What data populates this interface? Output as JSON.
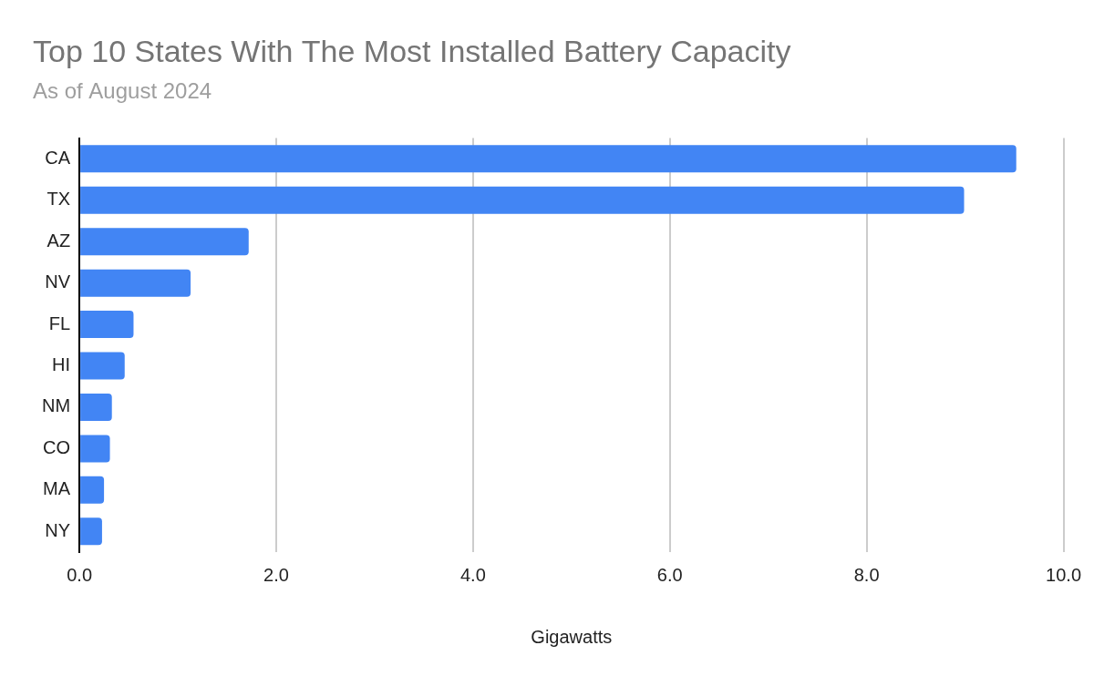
{
  "chart_data": {
    "type": "bar",
    "title": "Top 10 States With The Most Installed Battery Capacity",
    "subtitle": "As of August 2024",
    "x_label": "Gigawatts",
    "orientation": "horizontal",
    "categories": [
      "CA",
      "TX",
      "AZ",
      "NV",
      "FL",
      "HI",
      "NM",
      "CO",
      "MA",
      "NY"
    ],
    "values": [
      9.52,
      8.99,
      1.72,
      1.13,
      0.55,
      0.46,
      0.33,
      0.31,
      0.25,
      0.23
    ],
    "color": "#4285f4",
    "xlim": [
      0,
      10
    ],
    "xticks": [
      {
        "value": 0,
        "label": "0.0"
      },
      {
        "value": 2,
        "label": "2.0"
      },
      {
        "value": 4,
        "label": "4.0"
      },
      {
        "value": 6,
        "label": "6.0"
      },
      {
        "value": 8,
        "label": "8.0"
      },
      {
        "value": 10,
        "label": "10.0"
      }
    ],
    "grid": true
  }
}
